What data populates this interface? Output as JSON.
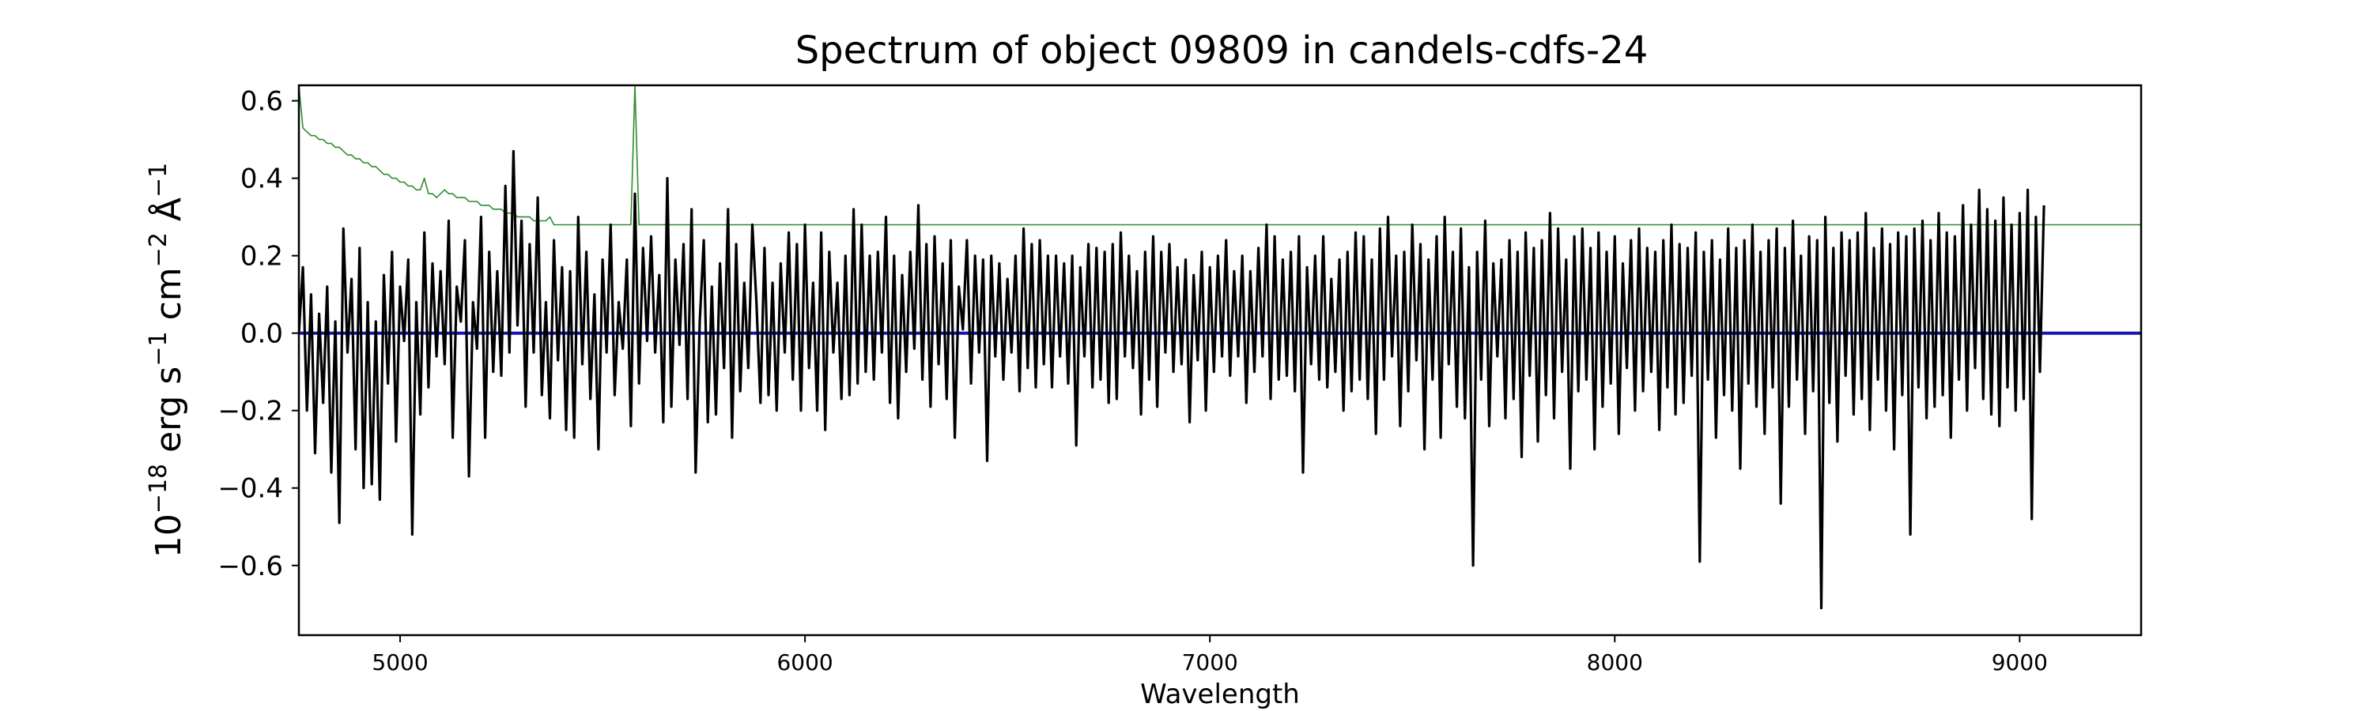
{
  "chart_data": {
    "type": "line",
    "title": "Spectrum of object 09809 in candels-cdfs-24",
    "xlabel": "Wavelength",
    "ylabel": {
      "base": "10",
      "exp1": "−18",
      "unit1": " erg s",
      "exp2": "−1",
      "unit2": " cm",
      "exp3": "−2",
      "unit3": " Å",
      "exp4": "−1"
    },
    "xlim": [
      4750,
      9300
    ],
    "ylim": [
      -0.78,
      0.64
    ],
    "x_ticks": [
      {
        "value": 5000,
        "label": "5000"
      },
      {
        "value": 6000,
        "label": "6000"
      },
      {
        "value": 7000,
        "label": "7000"
      },
      {
        "value": 8000,
        "label": "8000"
      },
      {
        "value": 9000,
        "label": "9000"
      }
    ],
    "y_ticks": [
      {
        "value": 0.6,
        "label": "0.6"
      },
      {
        "value": 0.4,
        "label": "0.4"
      },
      {
        "value": 0.2,
        "label": "0.2"
      },
      {
        "value": 0.0,
        "label": "0.0"
      },
      {
        "value": -0.2,
        "label": "−0.2"
      },
      {
        "value": -0.4,
        "label": "−0.4"
      },
      {
        "value": -0.6,
        "label": "−0.6"
      }
    ],
    "grid": false,
    "series": [
      {
        "role": "error",
        "color": "#2e8b2e",
        "style": "thin",
        "x_start": 4750,
        "x_step": 10,
        "values": [
          0.64,
          0.53,
          0.52,
          0.51,
          0.51,
          0.5,
          0.5,
          0.49,
          0.49,
          0.48,
          0.48,
          0.47,
          0.46,
          0.46,
          0.45,
          0.45,
          0.44,
          0.44,
          0.43,
          0.43,
          0.42,
          0.41,
          0.41,
          0.4,
          0.4,
          0.39,
          0.39,
          0.38,
          0.38,
          0.37,
          0.37,
          0.4,
          0.36,
          0.36,
          0.35,
          0.36,
          0.37,
          0.36,
          0.36,
          0.35,
          0.35,
          0.35,
          0.34,
          0.34,
          0.34,
          0.33,
          0.33,
          0.33,
          0.32,
          0.32,
          0.32,
          0.31,
          0.31,
          0.31,
          0.3,
          0.3,
          0.3,
          0.3,
          0.29,
          0.29,
          0.29,
          0.29,
          0.3,
          0.28,
          0.28,
          0.28,
          0.28,
          0.28,
          0.28,
          0.28,
          0.28,
          0.28,
          0.28,
          0.28,
          0.28,
          0.28,
          0.28,
          0.28,
          0.28,
          0.28,
          0.28,
          0.28,
          0.28,
          0.64,
          0.28,
          0.28,
          0.28,
          0.28,
          0.28,
          0.28,
          0.28,
          0.28,
          0.28,
          0.28,
          0.28,
          0.28,
          0.28,
          0.28,
          0.28,
          0.28,
          0.28,
          0.28,
          0.28,
          0.28,
          0.28,
          0.28,
          0.28,
          0.28,
          0.28,
          0.28,
          0.28,
          0.28,
          0.28,
          0.28,
          0.28,
          0.28,
          0.28,
          0.28,
          0.28,
          0.28,
          0.28,
          0.28,
          0.28,
          0.28,
          0.28,
          0.28,
          0.28,
          0.28,
          0.28,
          0.28,
          0.28,
          0.28,
          0.28,
          0.28,
          0.28,
          0.28,
          0.28,
          0.28,
          0.28,
          0.28,
          0.28,
          0.28,
          0.28,
          0.28,
          0.28,
          0.28,
          0.28,
          0.28,
          0.28,
          0.28,
          0.28,
          0.28,
          0.28,
          0.28,
          0.28,
          0.28,
          0.28,
          0.28,
          0.28,
          0.28,
          0.28,
          0.28,
          0.28,
          0.28,
          0.28,
          0.28,
          0.28,
          0.28,
          0.28,
          0.28,
          0.28,
          0.28,
          0.28,
          0.28,
          0.28,
          0.28,
          0.28,
          0.28,
          0.28,
          0.28,
          0.28,
          0.28,
          0.28,
          0.28,
          0.28,
          0.28,
          0.28,
          0.28,
          0.28,
          0.28,
          0.28,
          0.28,
          0.28,
          0.28,
          0.28,
          0.28,
          0.28,
          0.28,
          0.28,
          0.28,
          0.28,
          0.28,
          0.28,
          0.28,
          0.28,
          0.28,
          0.28,
          0.28,
          0.28,
          0.28,
          0.28,
          0.28,
          0.28,
          0.28,
          0.28,
          0.28,
          0.28,
          0.28,
          0.28,
          0.28,
          0.28,
          0.28,
          0.28,
          0.28,
          0.28,
          0.28,
          0.28,
          0.28,
          0.28,
          0.28,
          0.28,
          0.28,
          0.28,
          0.28,
          0.28,
          0.28,
          0.28,
          0.28,
          0.28,
          0.28,
          0.28,
          0.28,
          0.28,
          0.28,
          0.28,
          0.28,
          0.28,
          0.28,
          0.28,
          0.28,
          0.28,
          0.28,
          0.28,
          0.28,
          0.28,
          0.28,
          0.28,
          0.28,
          0.28,
          0.28,
          0.28,
          0.28,
          0.28,
          0.28,
          0.28,
          0.28,
          0.28,
          0.28,
          0.28,
          0.28,
          0.28,
          0.28,
          0.28,
          0.28,
          0.28,
          0.28,
          0.28,
          0.28,
          0.28,
          0.28,
          0.28,
          0.28,
          0.28,
          0.28,
          0.28,
          0.28,
          0.28,
          0.28,
          0.28,
          0.28,
          0.28,
          0.28,
          0.28,
          0.28,
          0.28,
          0.28,
          0.28,
          0.28,
          0.28,
          0.28,
          0.28,
          0.28,
          0.28,
          0.28,
          0.28,
          0.28,
          0.28,
          0.28,
          0.28,
          0.28,
          0.28,
          0.28,
          0.28,
          0.28,
          0.28,
          0.28,
          0.28,
          0.28,
          0.28,
          0.28,
          0.28,
          0.28,
          0.28,
          0.28,
          0.28,
          0.28,
          0.28,
          0.28,
          0.28,
          0.28,
          0.28,
          0.28,
          0.28,
          0.28,
          0.28,
          0.28,
          0.28,
          0.28,
          0.28,
          0.28,
          0.28,
          0.28,
          0.28,
          0.28,
          0.28,
          0.28,
          0.28,
          0.28,
          0.28,
          0.28,
          0.28,
          0.28,
          0.28,
          0.28,
          0.28,
          0.28,
          0.28,
          0.28,
          0.28,
          0.28,
          0.28,
          0.28,
          0.28,
          0.28,
          0.28,
          0.28,
          0.28,
          0.28,
          0.28,
          0.28,
          0.28,
          0.28,
          0.28,
          0.28,
          0.28,
          0.28,
          0.28,
          0.28,
          0.28,
          0.28,
          0.28,
          0.28,
          0.28,
          0.28,
          0.28,
          0.28,
          0.28,
          0.28,
          0.28,
          0.28,
          0.28,
          0.28,
          0.28,
          0.28,
          0.28,
          0.28,
          0.28,
          0.28,
          0.28,
          0.28,
          0.28,
          0.28,
          0.28,
          0.28,
          0.28,
          0.28,
          0.28,
          0.28,
          0.28,
          0.28,
          0.28,
          0.28,
          0.28,
          0.28,
          0.28,
          0.28,
          0.28,
          0.28,
          0.28,
          0.28,
          0.28,
          0.28,
          0.28,
          0.28,
          0.28,
          0.28,
          0.28,
          0.28,
          0.28,
          0.28,
          0.28,
          0.28,
          0.28,
          0.28,
          0.28,
          0.28,
          0.28,
          0.28,
          0.28,
          0.28,
          0.28,
          0.28,
          0.28,
          0.28,
          0.28,
          0.28,
          0.28,
          0.28,
          0.28,
          0.28,
          0.28,
          0.28,
          0.28,
          0.28,
          0.28,
          0.28
        ]
      },
      {
        "role": "model",
        "color": "#1515b0",
        "style": "medium",
        "x": [
          4750,
          9300
        ],
        "values": [
          0.0,
          0.0
        ]
      },
      {
        "role": "flux",
        "color": "#000000",
        "style": "bold",
        "x_start": 4750,
        "x_step": 10,
        "values": [
          0.0,
          0.17,
          -0.2,
          0.1,
          -0.31,
          0.05,
          -0.18,
          0.12,
          -0.36,
          0.03,
          -0.49,
          0.27,
          -0.05,
          0.14,
          -0.3,
          0.22,
          -0.4,
          0.08,
          -0.39,
          0.03,
          -0.43,
          0.15,
          -0.13,
          0.21,
          -0.28,
          0.12,
          -0.02,
          0.19,
          -0.52,
          0.08,
          -0.21,
          0.26,
          -0.14,
          0.18,
          -0.06,
          0.16,
          -0.08,
          0.29,
          -0.27,
          0.12,
          0.03,
          0.24,
          -0.37,
          0.08,
          -0.04,
          0.3,
          -0.27,
          0.21,
          -0.1,
          0.16,
          -0.11,
          0.38,
          -0.05,
          0.47,
          0.02,
          0.29,
          -0.19,
          0.23,
          -0.05,
          0.35,
          -0.16,
          0.08,
          -0.22,
          0.24,
          -0.07,
          0.17,
          -0.25,
          0.16,
          -0.27,
          0.3,
          -0.08,
          0.21,
          -0.17,
          0.1,
          -0.3,
          0.19,
          -0.05,
          0.28,
          -0.16,
          0.08,
          -0.04,
          0.19,
          -0.24,
          0.36,
          -0.13,
          0.22,
          -0.02,
          0.25,
          -0.05,
          0.15,
          -0.23,
          0.4,
          -0.19,
          0.19,
          -0.03,
          0.23,
          -0.17,
          0.32,
          -0.36,
          0.03,
          0.24,
          -0.23,
          0.12,
          -0.21,
          0.18,
          -0.09,
          0.32,
          -0.27,
          0.23,
          -0.15,
          0.13,
          -0.09,
          0.28,
          0.08,
          -0.18,
          0.22,
          -0.16,
          0.13,
          -0.2,
          0.18,
          -0.05,
          0.26,
          -0.12,
          0.23,
          -0.2,
          0.28,
          -0.09,
          0.13,
          -0.2,
          0.26,
          -0.25,
          0.21,
          -0.05,
          0.13,
          -0.17,
          0.2,
          -0.16,
          0.32,
          -0.13,
          0.28,
          -0.1,
          0.2,
          -0.12,
          0.21,
          -0.05,
          0.3,
          -0.18,
          0.2,
          -0.22,
          0.15,
          -0.1,
          0.21,
          -0.04,
          0.33,
          -0.12,
          0.23,
          -0.19,
          0.25,
          -0.08,
          0.18,
          -0.17,
          0.24,
          -0.27,
          0.12,
          0.01,
          0.24,
          -0.13,
          0.2,
          -0.05,
          0.19,
          -0.33,
          0.2,
          -0.06,
          0.18,
          -0.12,
          0.14,
          -0.05,
          0.2,
          -0.15,
          0.27,
          -0.09,
          0.23,
          -0.14,
          0.24,
          -0.08,
          0.2,
          -0.14,
          0.2,
          -0.06,
          0.18,
          -0.13,
          0.2,
          -0.29,
          0.17,
          -0.06,
          0.23,
          -0.14,
          0.22,
          -0.12,
          0.21,
          -0.18,
          0.23,
          -0.17,
          0.26,
          -0.06,
          0.2,
          -0.09,
          0.16,
          -0.21,
          0.21,
          -0.12,
          0.25,
          -0.19,
          0.21,
          -0.05,
          0.23,
          -0.1,
          0.17,
          -0.08,
          0.19,
          -0.23,
          0.15,
          -0.07,
          0.21,
          -0.2,
          0.17,
          -0.1,
          0.2,
          -0.06,
          0.24,
          -0.11,
          0.16,
          -0.06,
          0.2,
          -0.18,
          0.16,
          -0.1,
          0.22,
          -0.06,
          0.28,
          -0.17,
          0.25,
          -0.12,
          0.19,
          -0.11,
          0.21,
          -0.15,
          0.25,
          -0.36,
          0.17,
          -0.08,
          0.2,
          -0.12,
          0.25,
          -0.14,
          0.14,
          -0.1,
          0.19,
          -0.2,
          0.21,
          -0.15,
          0.26,
          -0.12,
          0.25,
          -0.17,
          0.19,
          -0.26,
          0.27,
          -0.12,
          0.3,
          -0.06,
          0.2,
          -0.24,
          0.21,
          -0.15,
          0.28,
          -0.07,
          0.23,
          -0.3,
          0.19,
          -0.12,
          0.25,
          -0.27,
          0.3,
          -0.08,
          0.21,
          -0.19,
          0.27,
          -0.22,
          0.17,
          -0.6,
          0.21,
          -0.12,
          0.29,
          -0.24,
          0.18,
          -0.06,
          0.19,
          -0.22,
          0.24,
          -0.17,
          0.21,
          -0.32,
          0.26,
          -0.11,
          0.22,
          -0.28,
          0.24,
          -0.16,
          0.31,
          -0.22,
          0.27,
          -0.1,
          0.19,
          -0.35,
          0.25,
          -0.15,
          0.27,
          -0.12,
          0.22,
          -0.3,
          0.26,
          -0.19,
          0.21,
          -0.13,
          0.25,
          -0.26,
          0.18,
          -0.09,
          0.24,
          -0.2,
          0.27,
          -0.15,
          0.22,
          -0.1,
          0.21,
          -0.25,
          0.24,
          -0.14,
          0.28,
          -0.21,
          0.23,
          -0.18,
          0.22,
          -0.11,
          0.26,
          -0.59,
          0.21,
          -0.12,
          0.24,
          -0.27,
          0.19,
          -0.16,
          0.27,
          -0.2,
          0.22,
          -0.35,
          0.24,
          -0.13,
          0.28,
          -0.19,
          0.21,
          -0.26,
          0.24,
          -0.14,
          0.27,
          -0.44,
          0.22,
          -0.19,
          0.29,
          -0.12,
          0.2,
          -0.26,
          0.25,
          -0.15,
          0.24,
          -0.71,
          0.3,
          -0.18,
          0.22,
          -0.28,
          0.26,
          -0.11,
          0.24,
          -0.21,
          0.26,
          -0.17,
          0.31,
          -0.25,
          0.22,
          -0.12,
          0.27,
          -0.2,
          0.23,
          -0.3,
          0.26,
          -0.16,
          0.25,
          -0.52,
          0.27,
          -0.14,
          0.29,
          -0.22,
          0.24,
          -0.19,
          0.31,
          -0.16,
          0.26,
          -0.27,
          0.25,
          -0.12,
          0.33,
          -0.2,
          0.28,
          -0.09,
          0.37,
          -0.17,
          0.32,
          -0.21,
          0.29,
          -0.24,
          0.35,
          -0.14,
          0.28,
          -0.2,
          0.31,
          -0.17,
          0.37,
          -0.48,
          0.3,
          -0.1,
          0.33
        ]
      }
    ]
  }
}
